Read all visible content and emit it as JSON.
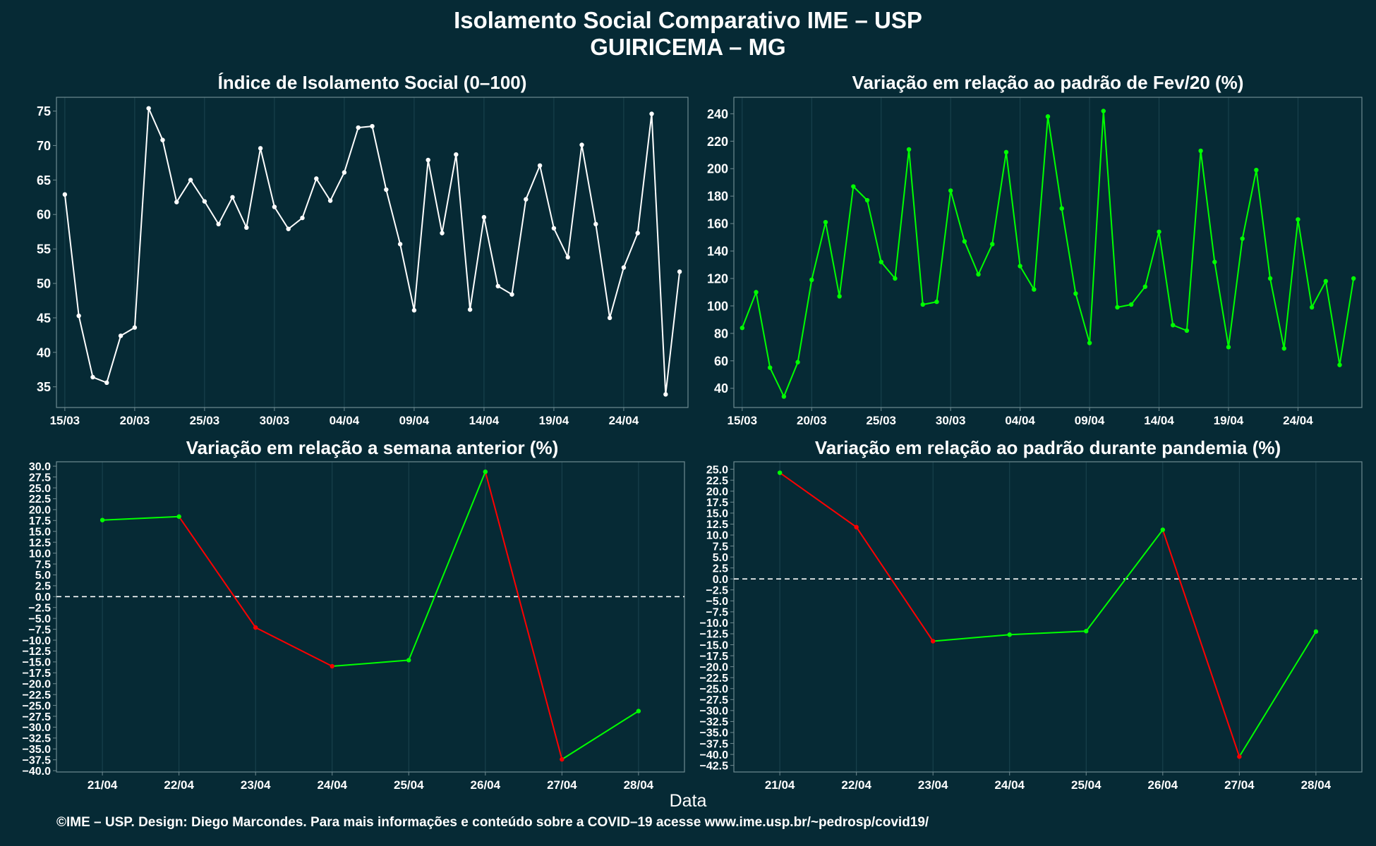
{
  "header": {
    "title": "Isolamento Social Comparativo IME – USP",
    "subtitle": "GUIRICEMA – MG"
  },
  "footer": {
    "credit": "©IME – USP. Design: Diego Marcondes. Para mais informações e conteúdo sobre a COVID–19 acesse www.ime.usp.br/~pedrosp/covid19/"
  },
  "shared_xlabel": "Data",
  "colors": {
    "background": "#062a35",
    "panel_border": "#6f8a90",
    "grid": "#1c4550",
    "line_white": "#ffffff",
    "line_green": "#00ff00",
    "line_red": "#ff0000",
    "zero_line": "#ffffff"
  },
  "chart_data": [
    {
      "id": "isolation-index",
      "type": "line",
      "title": "Índice de Isolamento Social (0–100)",
      "x_start": "15/03",
      "xticks": [
        {
          "label": "15/03",
          "day": 0
        },
        {
          "label": "20/03",
          "day": 5
        },
        {
          "label": "25/03",
          "day": 10
        },
        {
          "label": "30/03",
          "day": 15
        },
        {
          "label": "04/04",
          "day": 20
        },
        {
          "label": "09/04",
          "day": 25
        },
        {
          "label": "14/04",
          "day": 30
        },
        {
          "label": "19/04",
          "day": 35
        },
        {
          "label": "24/04",
          "day": 40
        }
      ],
      "xlim": [
        -0.6,
        44.6
      ],
      "ylim": [
        32,
        77
      ],
      "yticks": [
        35,
        40,
        45,
        50,
        55,
        60,
        65,
        70,
        75
      ],
      "color": "#ffffff",
      "values": [
        62.9,
        45.3,
        36.4,
        35.6,
        42.4,
        43.6,
        75.4,
        70.8,
        61.8,
        65.0,
        61.9,
        58.6,
        62.5,
        58.1,
        69.6,
        61.1,
        57.9,
        59.5,
        65.2,
        62.0,
        66.1,
        72.6,
        72.8,
        63.6,
        55.7,
        46.1,
        67.9,
        57.3,
        68.7,
        46.2,
        59.6,
        49.6,
        48.4,
        62.2,
        67.1,
        58.0,
        53.8,
        70.1,
        58.6,
        45.0,
        52.3,
        57.3,
        74.6,
        33.9,
        51.7
      ]
    },
    {
      "id": "variation-feb",
      "type": "line",
      "title": "Variação em relação ao padrão de Fev/20 (%)",
      "x_start": "15/03",
      "xticks": [
        {
          "label": "15/03",
          "day": 0
        },
        {
          "label": "20/03",
          "day": 5
        },
        {
          "label": "25/03",
          "day": 10
        },
        {
          "label": "30/03",
          "day": 15
        },
        {
          "label": "04/04",
          "day": 20
        },
        {
          "label": "09/04",
          "day": 25
        },
        {
          "label": "14/04",
          "day": 30
        },
        {
          "label": "19/04",
          "day": 35
        },
        {
          "label": "24/04",
          "day": 40
        }
      ],
      "xlim": [
        -0.6,
        44.6
      ],
      "ylim": [
        26,
        252
      ],
      "yticks": [
        40,
        60,
        80,
        100,
        120,
        140,
        160,
        180,
        200,
        220,
        240
      ],
      "color": "#00ff00",
      "values": [
        84,
        110,
        55,
        34,
        59,
        119,
        161,
        107,
        187,
        177,
        132,
        120,
        214,
        101,
        103,
        184,
        147,
        123,
        145,
        212,
        129,
        112,
        238,
        171,
        109,
        73,
        242,
        99,
        101,
        114,
        154,
        86,
        82,
        213,
        132,
        70,
        149,
        199,
        120,
        69,
        163,
        99,
        118,
        57,
        120
      ]
    },
    {
      "id": "variation-week",
      "type": "line",
      "title": "Variação em relação a semana anterior (%)",
      "categories": [
        "21/04",
        "22/04",
        "23/04",
        "24/04",
        "25/04",
        "26/04",
        "27/04",
        "28/04"
      ],
      "xlim": [
        -0.6,
        7.6
      ],
      "ylim": [
        -40.3,
        31.0
      ],
      "yticks": [
        -40.0,
        -37.5,
        -35.0,
        -32.5,
        -30.0,
        -27.5,
        -25.0,
        -22.5,
        -20.0,
        -17.5,
        -15.0,
        -12.5,
        -10.0,
        -7.5,
        -5.0,
        -2.5,
        0.0,
        2.5,
        5.0,
        7.5,
        10.0,
        12.5,
        15.0,
        17.5,
        20.0,
        22.5,
        25.0,
        27.5,
        30.0
      ],
      "reference_line": 0,
      "up_color": "#00ff00",
      "down_color": "#ff0000",
      "values": [
        17.6,
        18.4,
        -7.1,
        -16.0,
        -14.6,
        28.7,
        -37.4,
        -26.3
      ]
    },
    {
      "id": "variation-pandemic",
      "type": "line",
      "title": "Variação em relação ao padrão durante pandemia (%)",
      "categories": [
        "21/04",
        "22/04",
        "23/04",
        "24/04",
        "25/04",
        "26/04",
        "27/04",
        "28/04"
      ],
      "xlim": [
        -0.6,
        7.6
      ],
      "ylim": [
        -44.0,
        26.7
      ],
      "yticks": [
        -42.5,
        -40.0,
        -37.5,
        -35.0,
        -32.5,
        -30.0,
        -27.5,
        -25.0,
        -22.5,
        -20.0,
        -17.5,
        -15.0,
        -12.5,
        -10.0,
        -7.5,
        -5.0,
        -2.5,
        0.0,
        2.5,
        5.0,
        7.5,
        10.0,
        12.5,
        15.0,
        17.5,
        20.0,
        22.5,
        25.0
      ],
      "reference_line": 0,
      "up_color": "#00ff00",
      "down_color": "#ff0000",
      "values": [
        24.2,
        11.8,
        -14.2,
        -12.7,
        -11.9,
        11.2,
        -40.5,
        -12.0
      ]
    }
  ]
}
